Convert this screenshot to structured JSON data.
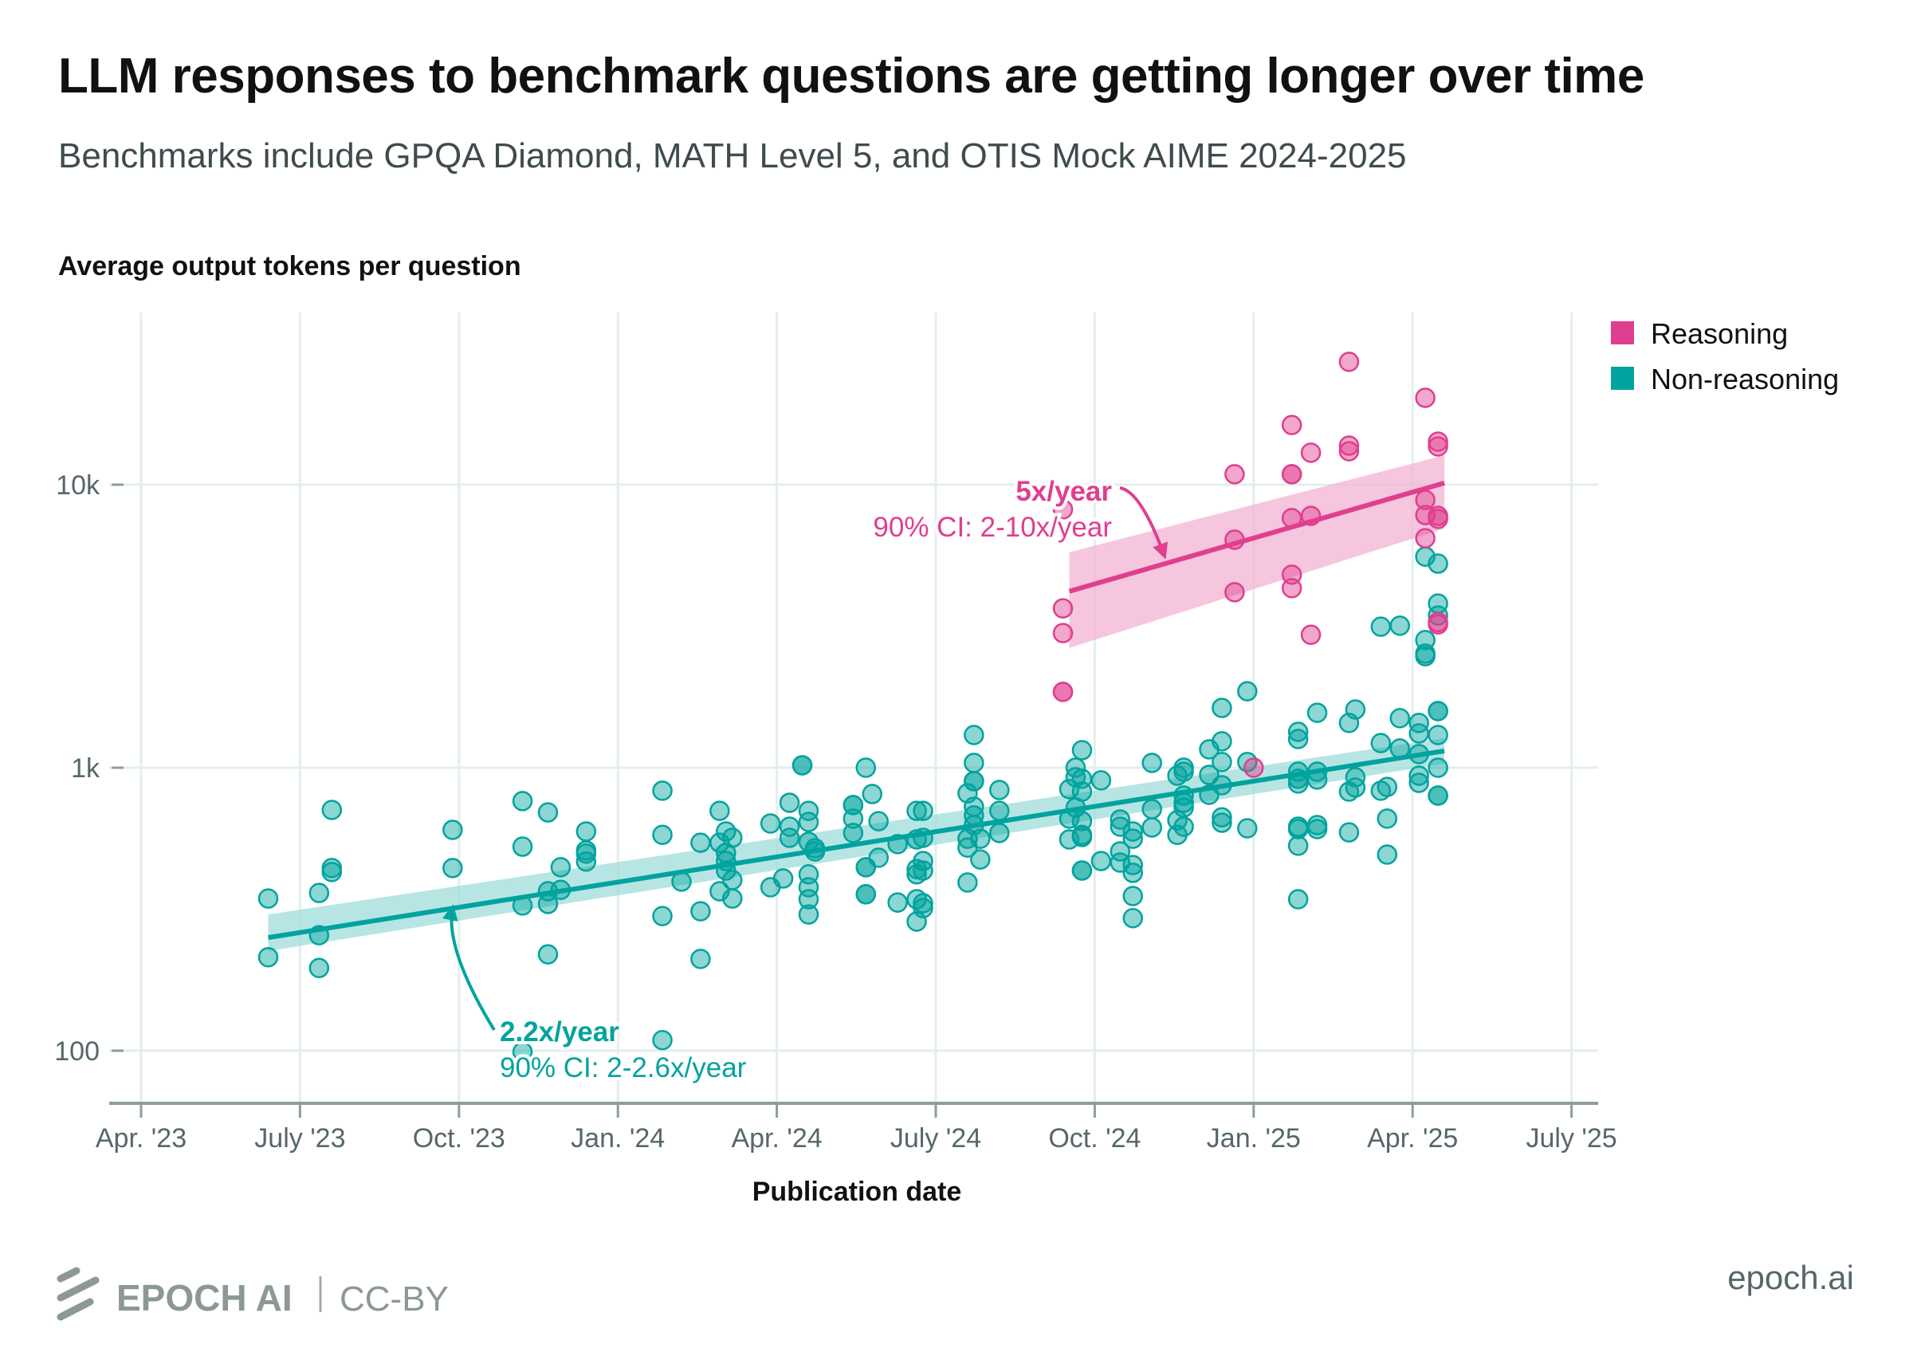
{
  "colors": {
    "reasoning": "#e03e8f",
    "reasoning_band": "#f2b3d2",
    "non_reasoning": "#00a39e",
    "non_reasoning_band": "#9fdcd9"
  },
  "footer": {
    "brand": "EPOCH AI",
    "separator": "|",
    "license": "CC-BY",
    "url": "epoch.ai",
    "logo_icon": "epoch-logo-icon"
  },
  "chart_data": {
    "type": "scatter",
    "title": "LLM responses to benchmark questions are getting longer over time",
    "subtitle": "Benchmarks include GPQA Diamond, MATH Level 5, and OTIS Mock AIME 2024-2025",
    "ylabel": "Average output tokens per question",
    "xlabel": "Publication date",
    "yscale": "log",
    "ylim": [
      55,
      38000
    ],
    "xlim": [
      2023.17,
      2025.55
    ],
    "yticks": [
      {
        "value": 100,
        "label": "100"
      },
      {
        "value": 1000,
        "label": "1k"
      },
      {
        "value": 10000,
        "label": "10k"
      }
    ],
    "xticks": [
      {
        "value": 2023.25,
        "label": "Apr. '23"
      },
      {
        "value": 2023.5,
        "label": "July '23"
      },
      {
        "value": 2023.75,
        "label": "Oct. '23"
      },
      {
        "value": 2024.0,
        "label": "Jan. '24"
      },
      {
        "value": 2024.25,
        "label": "Apr. '24"
      },
      {
        "value": 2024.5,
        "label": "July '24"
      },
      {
        "value": 2024.75,
        "label": "Oct. '24"
      },
      {
        "value": 2025.0,
        "label": "Jan. '25"
      },
      {
        "value": 2025.25,
        "label": "Apr. '25"
      },
      {
        "value": 2025.5,
        "label": "July '25"
      }
    ],
    "grid": true,
    "legend": {
      "position": "top-right",
      "entries": [
        {
          "name": "Reasoning",
          "color_key": "reasoning"
        },
        {
          "name": "Non-reasoning",
          "color_key": "non_reasoning"
        }
      ]
    },
    "series": [
      {
        "name": "Non-reasoning",
        "color_key": "non_reasoning",
        "points": [
          [
            2023.45,
            345
          ],
          [
            2023.45,
            214
          ],
          [
            2023.53,
            361
          ],
          [
            2023.53,
            256
          ],
          [
            2023.53,
            196
          ],
          [
            2023.55,
            709
          ],
          [
            2023.55,
            442
          ],
          [
            2023.55,
            428
          ],
          [
            2023.74,
            603
          ],
          [
            2023.74,
            442
          ],
          [
            2023.85,
            762
          ],
          [
            2023.85,
            526
          ],
          [
            2023.85,
            326
          ],
          [
            2023.85,
            99
          ],
          [
            2023.89,
            695
          ],
          [
            2023.89,
            330
          ],
          [
            2023.89,
            366
          ],
          [
            2023.89,
            219
          ],
          [
            2023.91,
            445
          ],
          [
            2023.91,
            370
          ],
          [
            2023.95,
            595
          ],
          [
            2023.95,
            510
          ],
          [
            2023.95,
            497
          ],
          [
            2023.95,
            466
          ],
          [
            2024.07,
            829
          ],
          [
            2024.07,
            579
          ],
          [
            2024.07,
            299
          ],
          [
            2024.07,
            109
          ],
          [
            2024.1,
            396
          ],
          [
            2024.13,
            543
          ],
          [
            2024.13,
            311
          ],
          [
            2024.13,
            211
          ],
          [
            2024.16,
            704
          ],
          [
            2024.17,
            595
          ],
          [
            2024.16,
            543
          ],
          [
            2024.17,
            500
          ],
          [
            2024.17,
            468
          ],
          [
            2024.17,
            433
          ],
          [
            2024.18,
            565
          ],
          [
            2024.18,
            401
          ],
          [
            2024.16,
            366
          ],
          [
            2024.18,
            345
          ],
          [
            2024.24,
            635
          ],
          [
            2024.24,
            378
          ],
          [
            2024.26,
            406
          ],
          [
            2024.27,
            752
          ],
          [
            2024.27,
            619
          ],
          [
            2024.27,
            565
          ],
          [
            2024.29,
            1020
          ],
          [
            2024.29,
            1020
          ],
          [
            2024.3,
            704
          ],
          [
            2024.3,
            643
          ],
          [
            2024.3,
            547
          ],
          [
            2024.31,
            519
          ],
          [
            2024.31,
            506
          ],
          [
            2024.3,
            420
          ],
          [
            2024.3,
            378
          ],
          [
            2024.3,
            343
          ],
          [
            2024.3,
            303
          ],
          [
            2024.37,
            738
          ],
          [
            2024.37,
            738
          ],
          [
            2024.37,
            661
          ],
          [
            2024.37,
            588
          ],
          [
            2024.39,
            1000
          ],
          [
            2024.4,
            807
          ],
          [
            2024.41,
            647
          ],
          [
            2024.41,
            481
          ],
          [
            2024.39,
            445
          ],
          [
            2024.39,
            445
          ],
          [
            2024.39,
            357
          ],
          [
            2024.39,
            357
          ],
          [
            2024.44,
            537
          ],
          [
            2024.44,
            334
          ],
          [
            2024.47,
            704
          ],
          [
            2024.48,
            704
          ],
          [
            2024.47,
            558
          ],
          [
            2024.48,
            565
          ],
          [
            2024.48,
            468
          ],
          [
            2024.47,
            438
          ],
          [
            2024.48,
            433
          ],
          [
            2024.47,
            420
          ],
          [
            2024.47,
            343
          ],
          [
            2024.48,
            332
          ],
          [
            2024.48,
            319
          ],
          [
            2024.47,
            286
          ],
          [
            2024.56,
            1305
          ],
          [
            2024.56,
            1040
          ],
          [
            2024.56,
            896
          ],
          [
            2024.56,
            896
          ],
          [
            2024.55,
            812
          ],
          [
            2024.56,
            728
          ],
          [
            2024.56,
            678
          ],
          [
            2024.56,
            627
          ],
          [
            2024.55,
            561
          ],
          [
            2024.57,
            561
          ],
          [
            2024.55,
            522
          ],
          [
            2024.57,
            474
          ],
          [
            2024.55,
            393
          ],
          [
            2024.6,
            834
          ],
          [
            2024.6,
            704
          ],
          [
            2024.6,
            588
          ],
          [
            2024.73,
            1153
          ],
          [
            2024.72,
            1000
          ],
          [
            2024.72,
            925
          ],
          [
            2024.73,
            914
          ],
          [
            2024.76,
            902
          ],
          [
            2024.71,
            840
          ],
          [
            2024.73,
            823
          ],
          [
            2024.72,
            723
          ],
          [
            2024.71,
            661
          ],
          [
            2024.73,
            647
          ],
          [
            2024.73,
            579
          ],
          [
            2024.73,
            569
          ],
          [
            2024.71,
            558
          ],
          [
            2024.76,
            468
          ],
          [
            2024.73,
            433
          ],
          [
            2024.73,
            433
          ],
          [
            2024.79,
            656
          ],
          [
            2024.79,
            619
          ],
          [
            2024.81,
            595
          ],
          [
            2024.81,
            561
          ],
          [
            2024.79,
            506
          ],
          [
            2024.79,
            462
          ],
          [
            2024.81,
            453
          ],
          [
            2024.81,
            425
          ],
          [
            2024.81,
            352
          ],
          [
            2024.81,
            294
          ],
          [
            2024.84,
            1040
          ],
          [
            2024.84,
            714
          ],
          [
            2024.84,
            615
          ],
          [
            2024.89,
            1000
          ],
          [
            2024.89,
            968
          ],
          [
            2024.88,
            937
          ],
          [
            2024.89,
            797
          ],
          [
            2024.89,
            752
          ],
          [
            2024.89,
            723
          ],
          [
            2024.88,
            652
          ],
          [
            2024.89,
            619
          ],
          [
            2024.88,
            579
          ],
          [
            2024.95,
            1626
          ],
          [
            2024.99,
            1862
          ],
          [
            2024.95,
            1240
          ],
          [
            2024.93,
            1161
          ],
          [
            2024.95,
            1047
          ],
          [
            2024.99,
            1047
          ],
          [
            2024.93,
            943
          ],
          [
            2024.95,
            867
          ],
          [
            2024.93,
            802
          ],
          [
            2024.95,
            668
          ],
          [
            2024.95,
            639
          ],
          [
            2024.99,
            611
          ],
          [
            2025.07,
            1339
          ],
          [
            2025.07,
            1263
          ],
          [
            2025.1,
            1563
          ],
          [
            2025.07,
            968
          ],
          [
            2025.07,
            914
          ],
          [
            2025.07,
            879
          ],
          [
            2025.1,
            968
          ],
          [
            2025.1,
            908
          ],
          [
            2025.07,
            619
          ],
          [
            2025.07,
            607
          ],
          [
            2025.1,
            627
          ],
          [
            2025.1,
            607
          ],
          [
            2025.07,
            530
          ],
          [
            2025.07,
            343
          ],
          [
            2025.16,
            1606
          ],
          [
            2025.15,
            1439
          ],
          [
            2025.16,
            925
          ],
          [
            2025.16,
            851
          ],
          [
            2025.15,
            823
          ],
          [
            2025.15,
            591
          ],
          [
            2025.2,
            1222
          ],
          [
            2025.23,
            1496
          ],
          [
            2025.23,
            1169
          ],
          [
            2025.2,
            829
          ],
          [
            2025.21,
            855
          ],
          [
            2025.21,
            661
          ],
          [
            2025.21,
            493
          ],
          [
            2025.26,
            1439
          ],
          [
            2025.26,
            1322
          ],
          [
            2025.26,
            1117
          ],
          [
            2025.26,
            937
          ],
          [
            2025.26,
            884
          ],
          [
            2025.29,
            1585
          ],
          [
            2025.29,
            1585
          ],
          [
            2025.29,
            1305
          ],
          [
            2025.29,
            1000
          ],
          [
            2025.29,
            797
          ],
          [
            2025.29,
            797
          ],
          [
            2025.27,
            2478
          ],
          [
            2025.27,
            5570
          ],
          [
            2025.29,
            5260
          ],
          [
            2025.29,
            3800
          ],
          [
            2025.29,
            3450
          ],
          [
            2025.2,
            3150
          ],
          [
            2025.23,
            3175
          ],
          [
            2025.27,
            2825
          ],
          [
            2025.27,
            2530
          ]
        ],
        "trend": {
          "x": [
            2023.45,
            2025.3
          ],
          "y": [
            251,
            1146
          ],
          "ci_low": [
            225,
            1033
          ],
          "ci_high": [
            303,
            1271
          ]
        },
        "annotation": {
          "rate": "2.2x/year",
          "ci": "90% CI: 2-2.6x/year",
          "arrow_target": [
            2023.74,
            338
          ]
        }
      },
      {
        "name": "Reasoning",
        "color_key": "reasoning",
        "points": [
          [
            2024.7,
            8180
          ],
          [
            2024.7,
            3656
          ],
          [
            2024.7,
            2990
          ],
          [
            2024.7,
            1853
          ],
          [
            2024.7,
            1853
          ],
          [
            2024.97,
            10890
          ],
          [
            2024.97,
            6390
          ],
          [
            2024.97,
            4170
          ],
          [
            2025.06,
            16250
          ],
          [
            2025.06,
            10890
          ],
          [
            2025.06,
            10890
          ],
          [
            2025.06,
            7620
          ],
          [
            2025.06,
            4810
          ],
          [
            2025.06,
            4310
          ],
          [
            2025.09,
            12970
          ],
          [
            2025.09,
            7760
          ],
          [
            2025.09,
            2950
          ],
          [
            2025.15,
            27170
          ],
          [
            2025.15,
            13740
          ],
          [
            2025.15,
            13130
          ],
          [
            2025.27,
            20280
          ],
          [
            2025.27,
            8830
          ],
          [
            2025.27,
            7810
          ],
          [
            2025.29,
            7760
          ],
          [
            2025.29,
            7570
          ],
          [
            2025.27,
            6470
          ],
          [
            2025.29,
            14190
          ],
          [
            2025.29,
            13650
          ],
          [
            2025.29,
            3270
          ],
          [
            2025.29,
            3210
          ],
          [
            2025.0,
            1000
          ]
        ],
        "trend": {
          "x": [
            2024.71,
            2025.3
          ],
          "y": [
            4200,
            10140
          ],
          "ci_low": [
            2650,
            7000
          ],
          "ci_high": [
            5770,
            12700
          ]
        },
        "annotation": {
          "rate": "5x/year",
          "ci": "90% CI: 2-10x/year",
          "arrow_target": [
            2024.86,
            5300
          ]
        }
      }
    ]
  }
}
